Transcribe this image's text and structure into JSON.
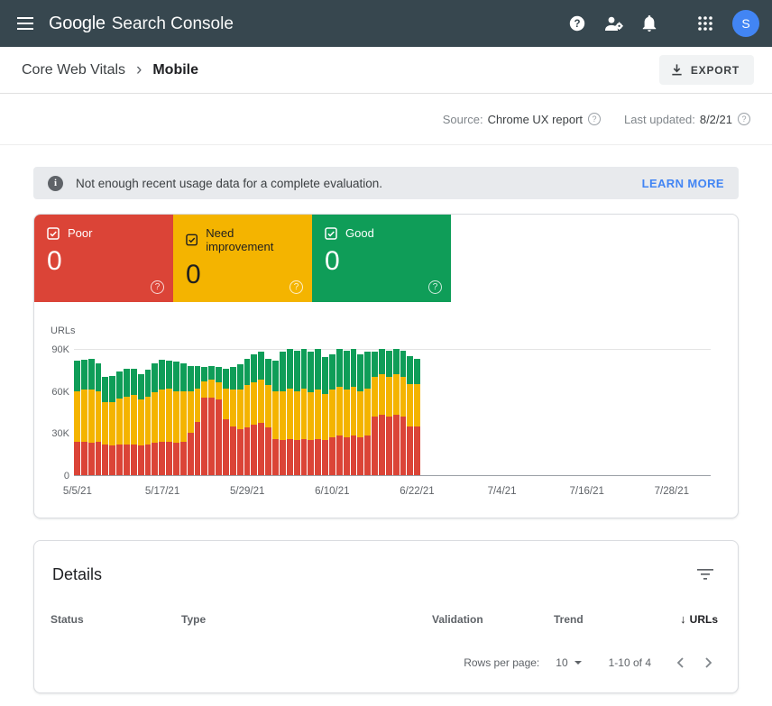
{
  "colors": {
    "appbar": "#37474f",
    "link": "#4285f4",
    "avatar": "#4285f4"
  },
  "header": {
    "brand": "Google",
    "product": "Search Console",
    "avatar_initial": "S"
  },
  "breadcrumb": {
    "section": "Core Web Vitals",
    "separator": "›",
    "page": "Mobile"
  },
  "export": {
    "label": "EXPORT"
  },
  "meta": {
    "source_label": "Source:",
    "source_value": "Chrome UX report",
    "updated_label": "Last updated:",
    "updated_value": "8/2/21"
  },
  "banner": {
    "message": "Not enough recent usage data for a complete evaluation.",
    "action": "LEARN MORE"
  },
  "tiles": [
    {
      "label": "Poor",
      "value": "0",
      "color": "#db4437",
      "text_color": "#ffffff"
    },
    {
      "label": "Need improvement",
      "value": "0",
      "color": "#f4b400",
      "text_color": "#1f1f1f"
    },
    {
      "label": "Good",
      "value": "0",
      "color": "#0f9d58",
      "text_color": "#ffffff"
    }
  ],
  "chart_data": {
    "type": "bar",
    "stacked": true,
    "ylabel": "URLs",
    "unit": "thousands of URLs",
    "ylim": [
      0,
      90
    ],
    "yticks": [
      {
        "label": "0",
        "value": 0
      },
      {
        "label": "30K",
        "value": 30
      },
      {
        "label": "60K",
        "value": 60
      },
      {
        "label": "90K",
        "value": 90
      }
    ],
    "x_start_date": "5/5/21",
    "x_end_date": "8/2/21",
    "days_total": 90,
    "x_tick_labels": [
      "5/5/21",
      "5/17/21",
      "5/29/21",
      "6/10/21",
      "6/22/21",
      "7/4/21",
      "7/16/21",
      "7/28/21"
    ],
    "x_tick_days": [
      0,
      12,
      24,
      36,
      48,
      60,
      72,
      84
    ],
    "note": "daily stacked bars from 5/5/21 through 6/22/21; no data after 6/22/21",
    "series": [
      {
        "name": "Poor",
        "color": "#db4437",
        "values": [
          24,
          24,
          23,
          24,
          22,
          21,
          22,
          22,
          22,
          21,
          22,
          23,
          24,
          24,
          23,
          24,
          30,
          38,
          55,
          55,
          54,
          40,
          35,
          33,
          34,
          36,
          37,
          34,
          26,
          25,
          26,
          25,
          26,
          25,
          26,
          25,
          27,
          28,
          27,
          28,
          27,
          28,
          42,
          43,
          42,
          43,
          42,
          35,
          35
        ]
      },
      {
        "name": "Need improvement",
        "color": "#f4b400",
        "values": [
          36,
          37,
          38,
          36,
          30,
          31,
          33,
          34,
          35,
          33,
          34,
          36,
          37,
          38,
          37,
          36,
          30,
          24,
          12,
          13,
          12,
          22,
          26,
          28,
          30,
          30,
          31,
          30,
          34,
          35,
          36,
          35,
          36,
          34,
          35,
          33,
          34,
          35,
          34,
          35,
          33,
          34,
          28,
          29,
          28,
          29,
          28,
          30,
          30
        ]
      },
      {
        "name": "Good",
        "color": "#0f9d58",
        "values": [
          22,
          21,
          22,
          20,
          18,
          19,
          19,
          20,
          19,
          18,
          19,
          21,
          21,
          20,
          21,
          20,
          18,
          16,
          10,
          10,
          11,
          14,
          16,
          18,
          19,
          20,
          20,
          19,
          22,
          28,
          28,
          29,
          28,
          29,
          29,
          26,
          25,
          27,
          28,
          27,
          26,
          26,
          18,
          18,
          19,
          18,
          19,
          20,
          18
        ]
      }
    ]
  },
  "details": {
    "title": "Details",
    "columns": [
      {
        "label": "Status"
      },
      {
        "label": "Type"
      },
      {
        "label": "Validation"
      },
      {
        "label": "Trend"
      },
      {
        "label": "URLs",
        "sort": "desc"
      }
    ],
    "pagination": {
      "rows_per_page_label": "Rows per page:",
      "rows_per_page_value": "10",
      "range": "1-10 of 4"
    }
  }
}
